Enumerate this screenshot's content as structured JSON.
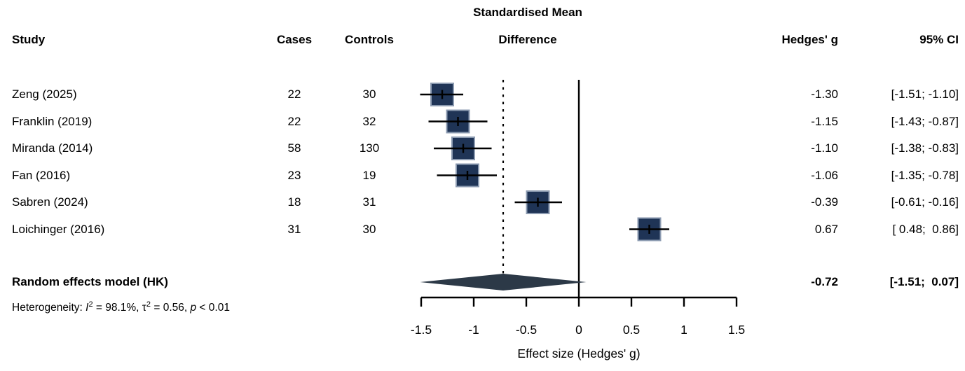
{
  "title": {
    "line1": "Standardised Mean",
    "line2": "Difference"
  },
  "columns": {
    "study": "Study",
    "cases": "Cases",
    "controls": "Controls",
    "hedges_g": "Hedges' g",
    "ci": "95% CI"
  },
  "chart_data": {
    "type": "forest",
    "x_axis": {
      "label": "Effect size (Hedges' g)",
      "min": -1.5,
      "max": 1.5,
      "ticks": [
        -1.5,
        -1,
        -0.5,
        0,
        0.5,
        1,
        1.5
      ],
      "tick_labels": [
        "-1.5",
        "-1",
        "-0.5",
        "0",
        "0.5",
        "1",
        "1.5"
      ]
    },
    "reference_line_value": 0,
    "dashed_line_value": -0.72,
    "studies": [
      {
        "name": "Zeng (2025)",
        "cases": "22",
        "controls": "30",
        "g": -1.3,
        "lo": -1.51,
        "hi": -1.1,
        "g_text": "-1.30",
        "ci_text": "[-1.51; -1.10]"
      },
      {
        "name": "Franklin (2019)",
        "cases": "22",
        "controls": "32",
        "g": -1.15,
        "lo": -1.43,
        "hi": -0.87,
        "g_text": "-1.15",
        "ci_text": "[-1.43; -0.87]"
      },
      {
        "name": "Miranda (2014)",
        "cases": "58",
        "controls": "130",
        "g": -1.1,
        "lo": -1.38,
        "hi": -0.83,
        "g_text": "-1.10",
        "ci_text": "[-1.38; -0.83]"
      },
      {
        "name": "Fan (2016)",
        "cases": "23",
        "controls": "19",
        "g": -1.06,
        "lo": -1.35,
        "hi": -0.78,
        "g_text": "-1.06",
        "ci_text": "[-1.35; -0.78]"
      },
      {
        "name": "Sabren (2024)",
        "cases": "18",
        "controls": "31",
        "g": -0.39,
        "lo": -0.61,
        "hi": -0.16,
        "g_text": "-0.39",
        "ci_text": "[-0.61; -0.16]"
      },
      {
        "name": "Loichinger (2016)",
        "cases": "31",
        "controls": "30",
        "g": 0.67,
        "lo": 0.48,
        "hi": 0.86,
        "g_text": "0.67",
        "ci_text": "[ 0.48;  0.86]"
      }
    ],
    "summary": {
      "name": "Random effects model (HK)",
      "g": -0.72,
      "lo": -1.51,
      "hi": 0.07,
      "g_text": "-0.72",
      "ci_text": "[-1.51;  0.07]"
    },
    "heterogeneity": {
      "plain": "Heterogeneity: I² = 98.1%, τ² = 0.56, p < 0.01",
      "segments": [
        {
          "text": "Heterogeneity: "
        },
        {
          "text": "I",
          "italic": true
        },
        {
          "text": "2",
          "sup": true
        },
        {
          "text": " = 98.1%, τ"
        },
        {
          "text": "2",
          "sup": true
        },
        {
          "text": " = 0.56, "
        },
        {
          "text": "p",
          "italic": true
        },
        {
          "text": " < 0.01"
        }
      ]
    }
  },
  "colors": {
    "square_fill": "#1f3456",
    "square_border": "#8b9ab0",
    "diamond_fill": "#2c3947",
    "line": "#000000"
  }
}
